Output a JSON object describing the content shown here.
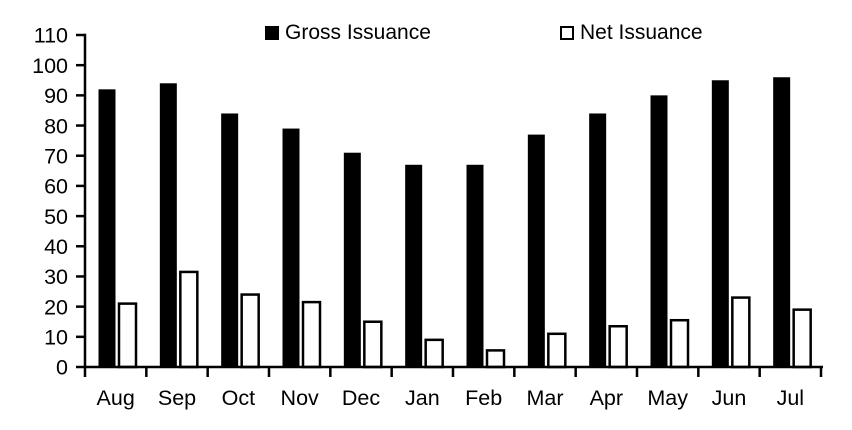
{
  "chart_data": {
    "type": "bar",
    "title": "",
    "xlabel": "",
    "ylabel": "",
    "categories": [
      "Aug",
      "Sep",
      "Oct",
      "Nov",
      "Dec",
      "Jan",
      "Feb",
      "Mar",
      "Apr",
      "May",
      "Jun",
      "Jul"
    ],
    "series": [
      {
        "name": "Gross Issuance",
        "values": [
          92,
          94,
          84,
          79,
          71,
          67,
          67,
          77,
          84,
          90,
          95,
          96
        ],
        "fill": "#000000",
        "stroke": "#000000"
      },
      {
        "name": "Net Issuance",
        "values": [
          21,
          31.5,
          24,
          21.5,
          15,
          9,
          5.5,
          11,
          13.5,
          15.5,
          23,
          19
        ],
        "fill": "#ffffff",
        "stroke": "#000000"
      }
    ],
    "ylim": [
      0,
      110
    ],
    "yticks": [
      0,
      10,
      20,
      30,
      40,
      50,
      60,
      70,
      80,
      90,
      100,
      110
    ],
    "legend_position": "top",
    "grid": false,
    "axis_color": "#000000",
    "background": "#ffffff"
  }
}
